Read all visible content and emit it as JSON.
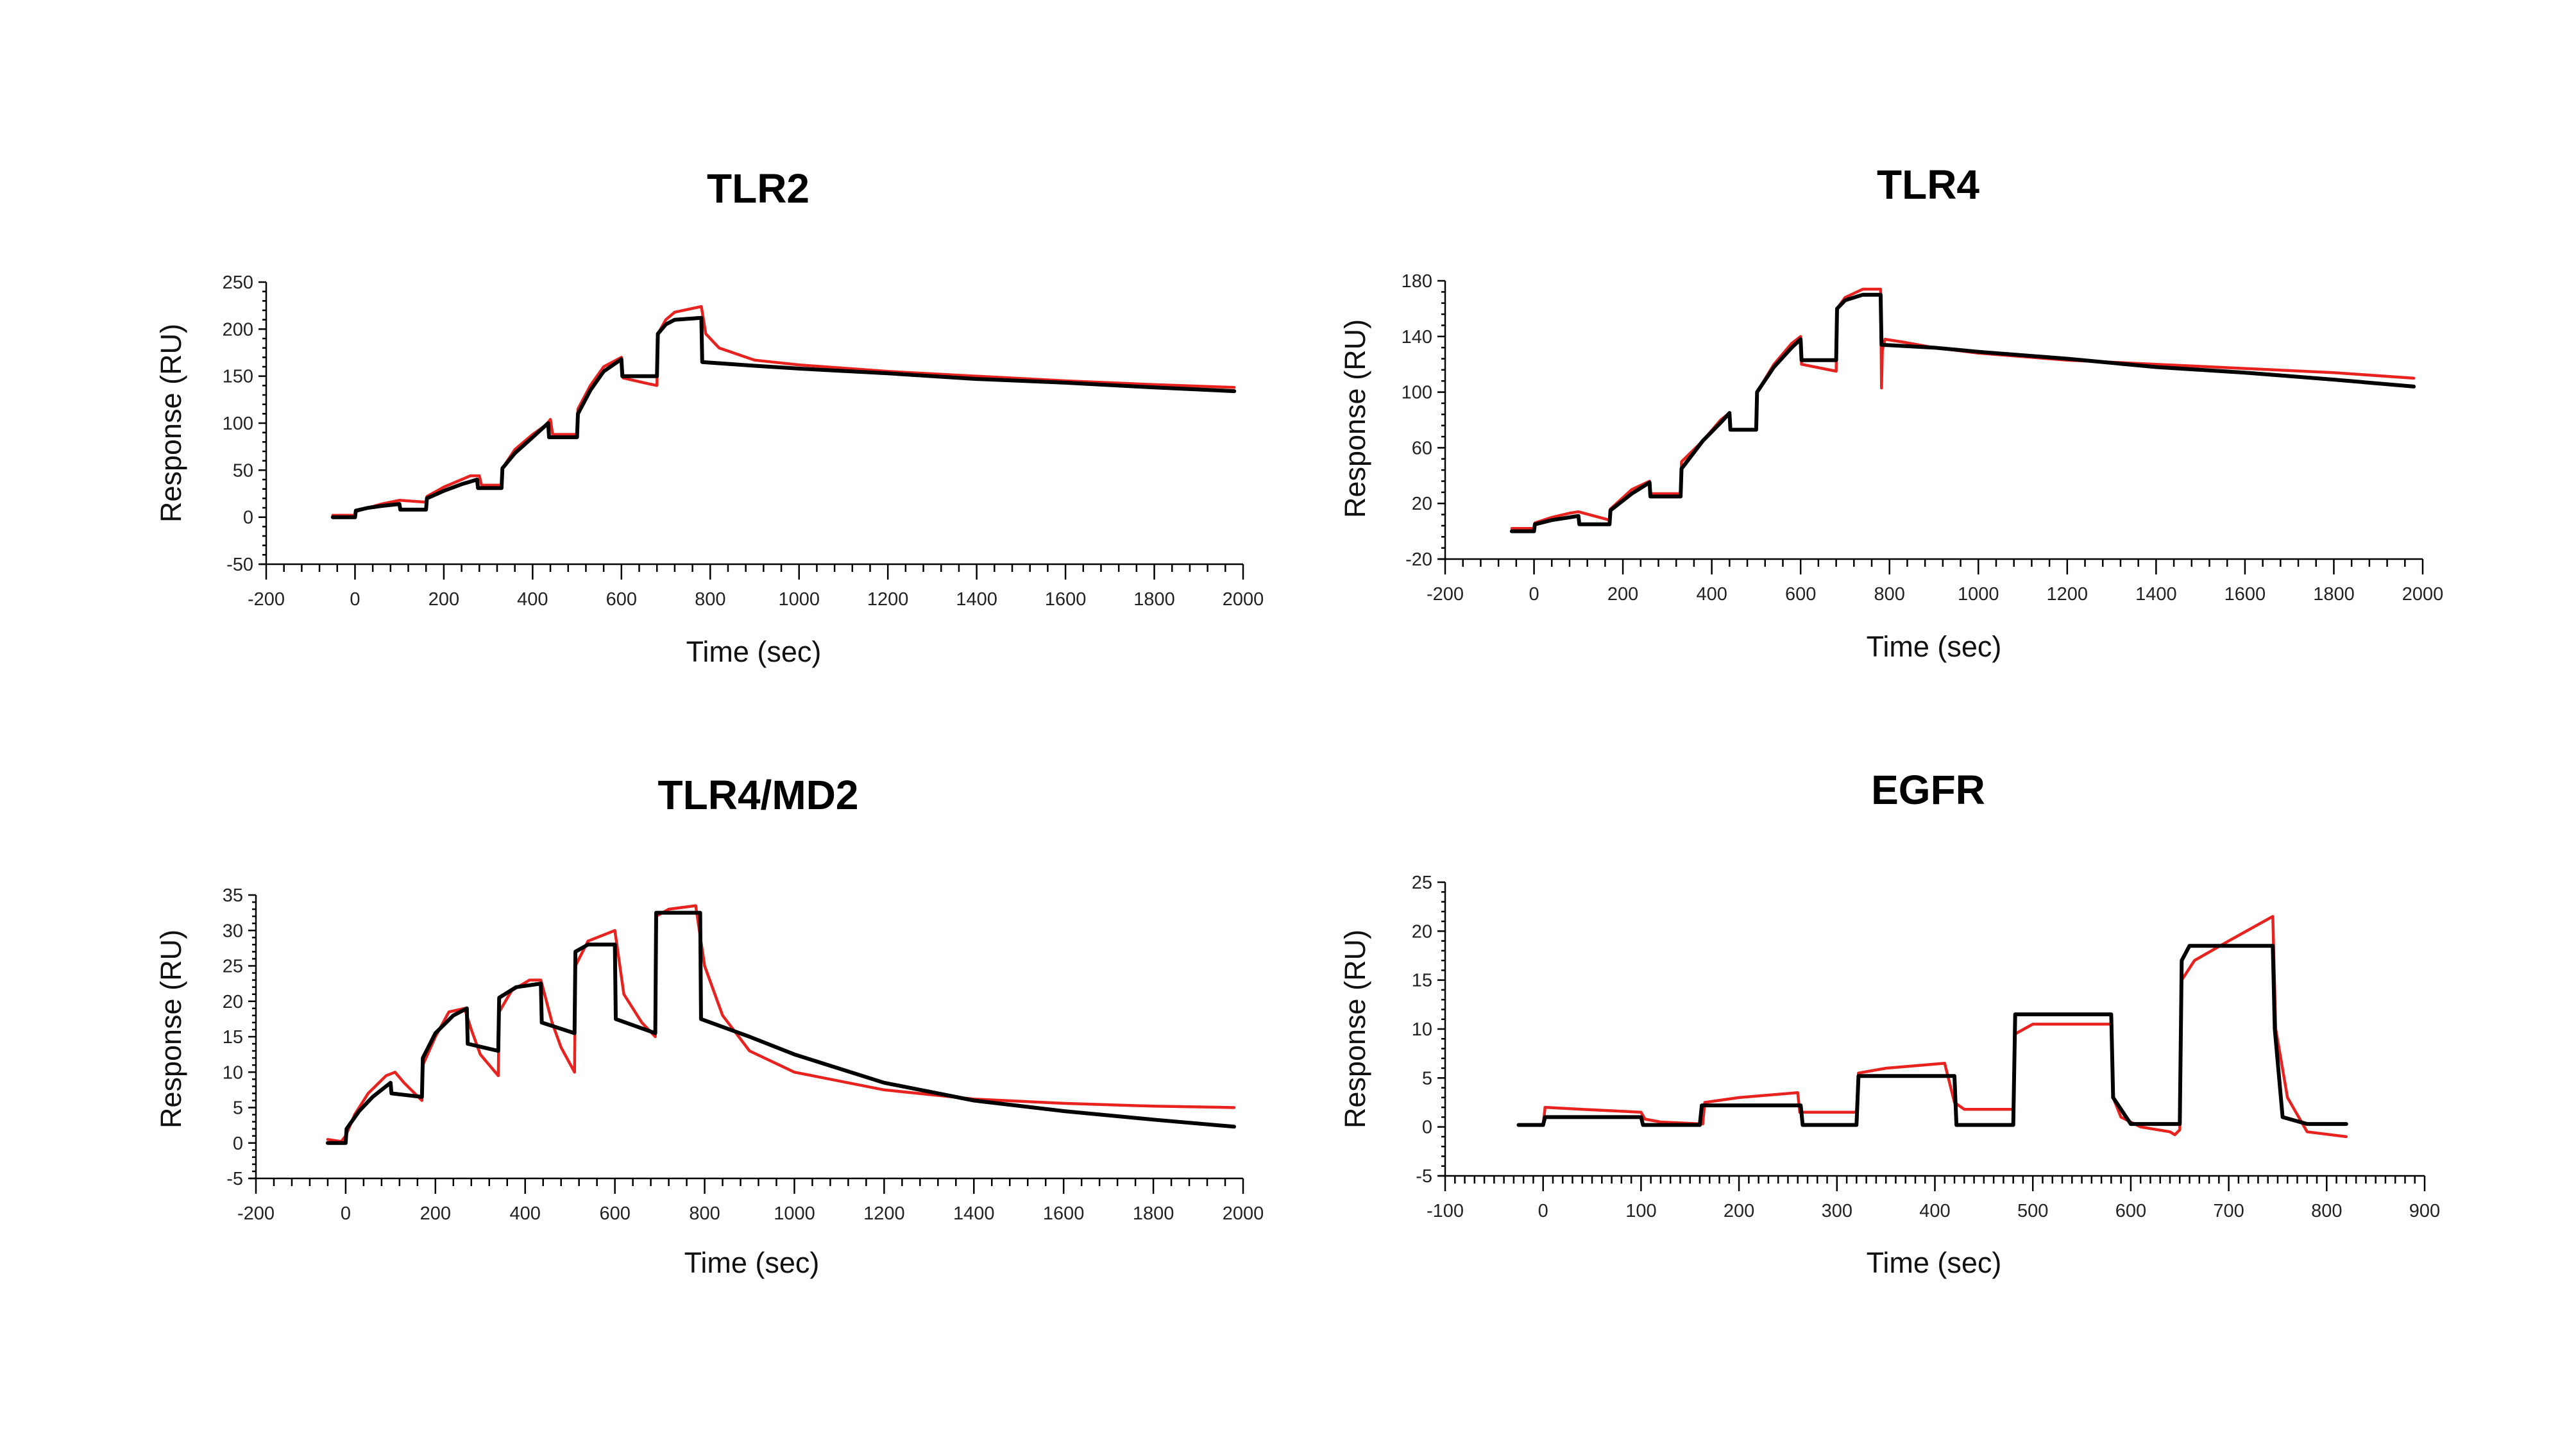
{
  "chart_data": [
    {
      "type": "line",
      "title": "TLR2",
      "xlabel": "Time (sec)",
      "ylabel": "Response (RU)",
      "xlim": [
        -200,
        2000
      ],
      "ylim": [
        -50,
        250
      ],
      "xticks": [
        -200,
        0,
        200,
        400,
        600,
        800,
        1000,
        1200,
        1400,
        1600,
        1800,
        2000
      ],
      "xtick_labels": [
        "-200",
        "0",
        "200",
        "400",
        "600",
        "800",
        "1000",
        "1200",
        "1400",
        "1600",
        "1800",
        "2000"
      ],
      "yticks": [
        -50,
        0,
        50,
        100,
        150,
        200,
        250
      ],
      "ytick_labels": [
        "-50",
        "0",
        "50",
        "100",
        "150",
        "200",
        "250"
      ],
      "series": [
        {
          "color": "#e8231f",
          "x": [
            -50,
            0,
            2,
            30,
            60,
            100,
            160,
            162,
            200,
            240,
            260,
            280,
            285,
            330,
            332,
            360,
            400,
            430,
            440,
            445,
            500,
            502,
            530,
            560,
            600,
            604,
            660,
            680,
            682,
            700,
            720,
            780,
            790,
            820,
            900,
            1000,
            1200,
            1400,
            1600,
            1800,
            1980
          ],
          "y": [
            2,
            2,
            6,
            10,
            14,
            18,
            16,
            22,
            32,
            40,
            44,
            44,
            34,
            34,
            52,
            72,
            88,
            98,
            104,
            88,
            88,
            115,
            140,
            160,
            170,
            148,
            142,
            140,
            195,
            210,
            218,
            224,
            195,
            180,
            167,
            162,
            155,
            150,
            145,
            141,
            138
          ]
        },
        {
          "color": "#000000",
          "x": [
            -50,
            0,
            2,
            30,
            60,
            100,
            102,
            160,
            162,
            200,
            240,
            275,
            277,
            330,
            332,
            360,
            400,
            435,
            437,
            500,
            502,
            530,
            560,
            600,
            602,
            680,
            682,
            700,
            720,
            780,
            782,
            900,
            1000,
            1200,
            1400,
            1600,
            1800,
            1980
          ],
          "y": [
            0,
            0,
            7,
            10,
            12,
            14,
            8,
            8,
            20,
            28,
            35,
            40,
            31,
            31,
            52,
            68,
            85,
            100,
            85,
            85,
            110,
            135,
            155,
            168,
            150,
            150,
            195,
            205,
            210,
            212,
            165,
            161,
            158,
            153,
            147,
            143,
            138,
            134
          ]
        }
      ]
    },
    {
      "type": "line",
      "title": "TLR4",
      "xlabel": "Time (sec)",
      "ylabel": "Response (RU)",
      "xlim": [
        -200,
        2000
      ],
      "ylim": [
        -20,
        180
      ],
      "xticks": [
        -200,
        0,
        200,
        400,
        600,
        800,
        1000,
        1200,
        1400,
        1600,
        1800,
        2000
      ],
      "xtick_labels": [
        "-200",
        "0",
        "200",
        "400",
        "600",
        "800",
        "1000",
        "1200",
        "1400",
        "1600",
        "1800",
        "2000"
      ],
      "yticks": [
        -20,
        20,
        60,
        100,
        140,
        180
      ],
      "ytick_labels": [
        "-20",
        "20",
        "60",
        "100",
        "140",
        "180"
      ],
      "series": [
        {
          "color": "#e8231f",
          "x": [
            -50,
            0,
            2,
            40,
            80,
            100,
            170,
            172,
            220,
            260,
            262,
            330,
            332,
            380,
            420,
            440,
            442,
            500,
            502,
            540,
            580,
            600,
            602,
            680,
            682,
            700,
            740,
            780,
            782,
            784,
            790,
            830,
            900,
            1000,
            1200,
            1400,
            1600,
            1800,
            1980
          ],
          "y": [
            2,
            2,
            6,
            10,
            13,
            14,
            8,
            16,
            30,
            36,
            27,
            27,
            50,
            65,
            80,
            85,
            73,
            73,
            100,
            120,
            135,
            140,
            120,
            115,
            160,
            168,
            174,
            174,
            103,
            130,
            138,
            136,
            132,
            128,
            123,
            120,
            117,
            114,
            110
          ]
        },
        {
          "color": "#000000",
          "x": [
            -50,
            0,
            2,
            40,
            80,
            100,
            102,
            170,
            172,
            220,
            260,
            262,
            330,
            332,
            380,
            420,
            440,
            442,
            500,
            502,
            540,
            580,
            600,
            602,
            680,
            682,
            700,
            740,
            780,
            782,
            900,
            1000,
            1200,
            1400,
            1600,
            1800,
            1980
          ],
          "y": [
            0,
            0,
            5,
            8,
            10,
            11,
            5,
            5,
            15,
            27,
            35,
            25,
            25,
            45,
            65,
            78,
            85,
            73,
            73,
            100,
            118,
            132,
            138,
            123,
            123,
            160,
            166,
            170,
            170,
            134,
            132,
            129,
            124,
            118,
            114,
            109,
            104
          ]
        }
      ]
    },
    {
      "type": "line",
      "title": "TLR4/MD2",
      "xlabel": "Time (sec)",
      "ylabel": "Response (RU)",
      "xlim": [
        -200,
        2000
      ],
      "ylim": [
        -5,
        35
      ],
      "xticks": [
        -200,
        0,
        200,
        400,
        600,
        800,
        1000,
        1200,
        1400,
        1600,
        1800,
        2000
      ],
      "xtick_labels": [
        "-200",
        "0",
        "200",
        "400",
        "600",
        "800",
        "1000",
        "1200",
        "1400",
        "1600",
        "1800",
        "2000"
      ],
      "yticks": [
        -5,
        0,
        5,
        10,
        15,
        20,
        25,
        30,
        35
      ],
      "ytick_labels": [
        "-5",
        "0",
        "5",
        "10",
        "15",
        "20",
        "25",
        "30",
        "35"
      ],
      "series": [
        {
          "color": "#e8231f",
          "x": [
            -40,
            -10,
            0,
            20,
            50,
            90,
            110,
            130,
            170,
            172,
            200,
            230,
            265,
            280,
            300,
            340,
            342,
            370,
            410,
            435,
            460,
            480,
            510,
            512,
            540,
            600,
            620,
            660,
            690,
            692,
            720,
            780,
            800,
            840,
            900,
            1000,
            1200,
            1400,
            1600,
            1800,
            1980
          ],
          "y": [
            0.5,
            0.2,
            1,
            4,
            7,
            9.5,
            10,
            8.5,
            6,
            11,
            15,
            18.5,
            19,
            16,
            12.5,
            9.5,
            18.5,
            21.5,
            23,
            23,
            17,
            13.5,
            10,
            25,
            28.5,
            30,
            21,
            17,
            15,
            32,
            33,
            33.5,
            25,
            18,
            13,
            10,
            7.5,
            6.2,
            5.6,
            5.2,
            5
          ]
        },
        {
          "color": "#000000",
          "x": [
            -40,
            0,
            2,
            30,
            60,
            100,
            102,
            170,
            172,
            200,
            240,
            270,
            272,
            340,
            342,
            380,
            435,
            437,
            510,
            512,
            540,
            600,
            602,
            690,
            692,
            720,
            790,
            792,
            900,
            1000,
            1200,
            1400,
            1600,
            1800,
            1980
          ],
          "y": [
            0,
            0,
            2,
            4.5,
            6.5,
            8.5,
            7,
            6.5,
            12,
            15.5,
            18,
            19,
            14,
            13,
            20.5,
            22,
            22.5,
            17,
            15.5,
            27,
            28,
            28,
            17.5,
            15.5,
            32.5,
            32.5,
            32.5,
            17.5,
            15,
            12.5,
            8.5,
            6,
            4.5,
            3.3,
            2.3
          ]
        }
      ]
    },
    {
      "type": "line",
      "title": "EGFR",
      "xlabel": "Time (sec)",
      "ylabel": "Response (RU)",
      "xlim": [
        -100,
        900
      ],
      "ylim": [
        -5,
        25
      ],
      "xticks": [
        -100,
        0,
        100,
        200,
        300,
        400,
        500,
        600,
        700,
        800,
        900
      ],
      "xtick_labels": [
        "-100",
        "0",
        "100",
        "200",
        "300",
        "400",
        "500",
        "600",
        "700",
        "800",
        "900"
      ],
      "yticks": [
        -5,
        0,
        5,
        10,
        15,
        20,
        25
      ],
      "ytick_labels": [
        "-5",
        "0",
        "5",
        "10",
        "15",
        "20",
        "25"
      ],
      "series": [
        {
          "color": "#e8231f",
          "x": [
            -25,
            0,
            2,
            40,
            100,
            104,
            120,
            163,
            165,
            200,
            260,
            262,
            320,
            322,
            350,
            410,
            420,
            430,
            480,
            482,
            500,
            540,
            580,
            582,
            590,
            610,
            640,
            645,
            650,
            652,
            665,
            700,
            745,
            748,
            760,
            780,
            820
          ],
          "y": [
            0.2,
            0.2,
            2,
            1.8,
            1.5,
            0.8,
            0.5,
            0.3,
            2.5,
            3,
            3.5,
            1.5,
            1.5,
            5.5,
            6,
            6.5,
            2.5,
            1.8,
            1.8,
            9.5,
            10.5,
            10.5,
            10.5,
            3,
            1,
            0,
            -0.5,
            -0.8,
            -0.3,
            15,
            17,
            19,
            21.5,
            10,
            3,
            -0.5,
            -1
          ]
        },
        {
          "color": "#000000",
          "x": [
            -25,
            0,
            2,
            100,
            102,
            160,
            162,
            263,
            265,
            320,
            322,
            420,
            422,
            480,
            482,
            580,
            582,
            600,
            650,
            652,
            660,
            745,
            747,
            755,
            780,
            820
          ],
          "y": [
            0.2,
            0.2,
            1,
            1,
            0.2,
            0.2,
            2.2,
            2.2,
            0.2,
            0.2,
            5.2,
            5.2,
            0.2,
            0.2,
            11.5,
            11.5,
            3,
            0.3,
            0.3,
            17,
            18.5,
            18.5,
            10,
            1,
            0.3,
            0.3
          ]
        }
      ]
    }
  ]
}
